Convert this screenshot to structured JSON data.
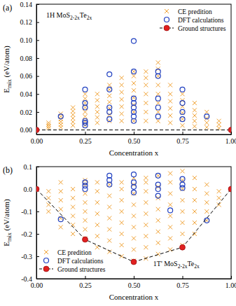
{
  "chart_data": [
    {
      "type": "scatter",
      "title": "(a)",
      "annotations": [
        "1H MoS2-2xTe2x"
      ],
      "x_label": "Concentration x",
      "y_label": "Emix (eV/atom)",
      "xlim": [
        0,
        1
      ],
      "ylim": [
        -0.005,
        0.14
      ],
      "xticks": [
        {
          "value": 0,
          "label": "0.00"
        },
        0.25,
        {
          "value": 0.5,
          "label": "0.50"
        },
        0.75,
        {
          "value": 1,
          "label": "1.00"
        }
      ],
      "yticks": [
        {
          "value": 0,
          "label": "0.00"
        },
        0.02,
        0.04,
        0.06,
        0.08,
        {
          "value": 0.1,
          "label": "0.10"
        },
        0.12,
        0.14
      ],
      "legend": "upper right",
      "series": [
        {
          "name": "CE predition",
          "color": "#f0a030",
          "marker": "x",
          "x": [
            0.0625,
            0.0625,
            0.0625,
            0.0625,
            0.125,
            0.125,
            0.125,
            0.125,
            0.125,
            0.125,
            0.1875,
            0.1875,
            0.1875,
            0.1875,
            0.1875,
            0.1875,
            0.25,
            0.25,
            0.25,
            0.25,
            0.25,
            0.25,
            0.25,
            0.25,
            0.3125,
            0.3125,
            0.3125,
            0.3125,
            0.3125,
            0.3125,
            0.375,
            0.375,
            0.375,
            0.375,
            0.375,
            0.375,
            0.375,
            0.4375,
            0.4375,
            0.4375,
            0.4375,
            0.4375,
            0.4375,
            0.4375,
            0.5,
            0.5,
            0.5,
            0.5,
            0.5,
            0.5,
            0.5,
            0.5,
            0.5625,
            0.5625,
            0.5625,
            0.5625,
            0.5625,
            0.5625,
            0.5625,
            0.625,
            0.625,
            0.625,
            0.625,
            0.625,
            0.625,
            0.625,
            0.625,
            0.6875,
            0.6875,
            0.6875,
            0.6875,
            0.6875,
            0.6875,
            0.75,
            0.75,
            0.75,
            0.75,
            0.75,
            0.75,
            0.8125,
            0.8125,
            0.8125,
            0.8125,
            0.8125,
            0.875,
            0.875,
            0.875,
            0.875,
            0.9375,
            0.9375,
            0.9375
          ],
          "values": [
            0.002,
            0.004,
            0.006,
            0.008,
            0.003,
            0.006,
            0.009,
            0.012,
            0.015,
            0.018,
            0.005,
            0.009,
            0.013,
            0.017,
            0.021,
            0.025,
            0.005,
            0.01,
            0.015,
            0.02,
            0.025,
            0.03,
            0.035,
            0.04,
            0.008,
            0.014,
            0.02,
            0.026,
            0.033,
            0.04,
            0.01,
            0.017,
            0.024,
            0.031,
            0.038,
            0.045,
            0.05,
            0.01,
            0.018,
            0.026,
            0.034,
            0.042,
            0.05,
            0.058,
            0.01,
            0.02,
            0.028,
            0.036,
            0.044,
            0.052,
            0.06,
            0.065,
            0.01,
            0.02,
            0.03,
            0.04,
            0.05,
            0.058,
            0.065,
            0.01,
            0.02,
            0.03,
            0.04,
            0.05,
            0.06,
            0.068,
            0.075,
            0.008,
            0.016,
            0.024,
            0.032,
            0.04,
            0.05,
            0.005,
            0.012,
            0.019,
            0.026,
            0.033,
            0.04,
            0.004,
            0.01,
            0.016,
            0.022,
            0.03,
            0.003,
            0.008,
            0.013,
            0.02,
            0.002,
            0.006,
            0.01
          ]
        },
        {
          "name": "DFT calculations",
          "color": "#1f3fc0",
          "marker": "open_circle",
          "x": [
            0.125,
            0.25,
            0.25,
            0.25,
            0.25,
            0.25,
            0.25,
            0.375,
            0.375,
            0.375,
            0.375,
            0.375,
            0.5,
            0.5,
            0.5,
            0.5,
            0.5,
            0.5,
            0.5,
            0.5,
            0.625,
            0.625,
            0.625,
            0.625,
            0.625,
            0.75,
            0.75,
            0.75,
            0.75,
            0.875
          ],
          "values": [
            0.015,
            0.045,
            0.03,
            0.025,
            0.01,
            0.008,
            0.005,
            0.062,
            0.045,
            0.025,
            0.02,
            0.012,
            0.099,
            0.065,
            0.035,
            0.03,
            0.025,
            0.02,
            0.015,
            0.01,
            0.065,
            0.06,
            0.035,
            0.025,
            0.015,
            0.045,
            0.03,
            0.02,
            0.012,
            0.015
          ]
        },
        {
          "name": "Ground structures",
          "type": "line",
          "color": "#e02020",
          "marker": "circle",
          "line_style": "dashed",
          "x": [
            0,
            1
          ],
          "values": [
            0,
            0
          ]
        }
      ]
    },
    {
      "type": "scatter",
      "title": "(b)",
      "annotations": [
        "1T' MoS2-2xTe2x"
      ],
      "x_label": "Concentration x",
      "y_label": "Emix (eV/atom)",
      "xlim": [
        0,
        1
      ],
      "ylim": [
        -0.4,
        0.1
      ],
      "xticks": [
        {
          "value": 0,
          "label": "0.00"
        },
        0.25,
        {
          "value": 0.5,
          "label": "0.50"
        },
        0.75,
        {
          "value": 1,
          "label": "1.00"
        }
      ],
      "yticks": [
        -0.4,
        -0.3,
        -0.2,
        -0.1,
        {
          "value": 0,
          "label": "0.0"
        },
        0.1
      ],
      "legend": "lower left",
      "series": [
        {
          "name": "CE predition",
          "color": "#f0a030",
          "marker": "x",
          "x": [
            0.0625,
            0.0625,
            0.0625,
            0.0625,
            0.125,
            0.125,
            0.125,
            0.125,
            0.125,
            0.125,
            0.1875,
            0.1875,
            0.1875,
            0.1875,
            0.1875,
            0.1875,
            0.25,
            0.25,
            0.25,
            0.25,
            0.25,
            0.25,
            0.25,
            0.25,
            0.3125,
            0.3125,
            0.3125,
            0.3125,
            0.3125,
            0.3125,
            0.3125,
            0.375,
            0.375,
            0.375,
            0.375,
            0.375,
            0.375,
            0.375,
            0.4375,
            0.4375,
            0.4375,
            0.4375,
            0.4375,
            0.4375,
            0.4375,
            0.4375,
            0.5,
            0.5,
            0.5,
            0.5,
            0.5,
            0.5,
            0.5,
            0.5,
            0.5,
            0.5625,
            0.5625,
            0.5625,
            0.5625,
            0.5625,
            0.5625,
            0.5625,
            0.5625,
            0.5625,
            0.625,
            0.625,
            0.625,
            0.625,
            0.625,
            0.625,
            0.625,
            0.625,
            0.6875,
            0.6875,
            0.6875,
            0.6875,
            0.6875,
            0.6875,
            0.6875,
            0.6875,
            0.75,
            0.75,
            0.75,
            0.75,
            0.75,
            0.75,
            0.75,
            0.75,
            0.8125,
            0.8125,
            0.8125,
            0.8125,
            0.8125,
            0.8125,
            0.875,
            0.875,
            0.875,
            0.875,
            0.875,
            0.9375,
            0.9375,
            0.9375
          ],
          "values": [
            -0.1,
            -0.07,
            -0.04,
            -0.01,
            -0.17,
            -0.13,
            -0.09,
            -0.05,
            -0.01,
            0.03,
            -0.2,
            -0.16,
            -0.12,
            -0.08,
            -0.04,
            0.0,
            -0.22,
            -0.18,
            -0.14,
            -0.1,
            -0.06,
            -0.02,
            0.02,
            0.04,
            -0.26,
            -0.21,
            -0.16,
            -0.11,
            -0.06,
            -0.01,
            0.03,
            -0.28,
            -0.23,
            -0.18,
            -0.13,
            -0.08,
            -0.03,
            0.02,
            -0.3,
            -0.25,
            -0.2,
            -0.15,
            -0.1,
            -0.05,
            0.0,
            0.03,
            -0.32,
            -0.27,
            -0.22,
            -0.17,
            -0.12,
            -0.07,
            -0.02,
            0.02,
            0.05,
            -0.31,
            -0.26,
            -0.21,
            -0.16,
            -0.11,
            -0.06,
            -0.01,
            0.03,
            0.05,
            -0.29,
            -0.24,
            -0.19,
            -0.14,
            -0.09,
            -0.04,
            0.01,
            0.06,
            -0.27,
            -0.22,
            -0.17,
            -0.12,
            -0.07,
            -0.02,
            0.03,
            0.07,
            -0.25,
            -0.2,
            -0.15,
            -0.1,
            -0.05,
            0.0,
            0.04,
            0.08,
            -0.2,
            -0.15,
            -0.1,
            -0.05,
            0.0,
            0.05,
            -0.14,
            -0.1,
            -0.06,
            -0.02,
            0.02,
            -0.07,
            -0.04,
            -0.01
          ]
        },
        {
          "name": "DFT calculations",
          "color": "#1f3fc0",
          "marker": "open_circle",
          "x": [
            0.125,
            0.25,
            0.25,
            0.25,
            0.375,
            0.375,
            0.375,
            0.5,
            0.5,
            0.5,
            0.5,
            0.625,
            0.625,
            0.625,
            0.625,
            0.6875,
            0.75,
            0.75,
            0.75,
            0.875
          ],
          "values": [
            -0.135,
            0.03,
            0.015,
            0.0,
            0.06,
            0.04,
            0.02,
            0.065,
            0.03,
            0.01,
            -0.015,
            0.06,
            0.02,
            0.0,
            -0.03,
            -0.095,
            0.045,
            0.02,
            0.005,
            -0.14
          ]
        },
        {
          "name": "Ground structures",
          "type": "line",
          "color": "#e02020",
          "marker": "circle",
          "line_style": "dashed",
          "x": [
            0,
            0.25,
            0.5,
            0.75,
            1
          ],
          "values": [
            0,
            -0.225,
            -0.325,
            -0.26,
            0
          ]
        }
      ]
    }
  ]
}
